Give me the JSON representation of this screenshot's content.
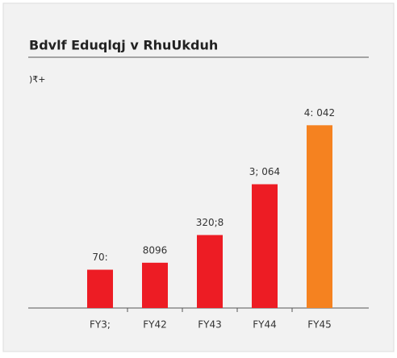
{
  "chart_data": {
    "type": "bar",
    "title": "Bdvlf Eduqlqj v RhuUkduh",
    "subtitle": ")₹+",
    "categories": [
      "FY3;",
      "FY42",
      "FY43",
      "FY44",
      "FY45"
    ],
    "values": [
      5.7,
      6.74,
      10.86,
      18.42,
      27.2
    ],
    "value_labels": [
      "70:",
      "8096",
      "320;8",
      "3; 064",
      "4: 042"
    ],
    "colors": [
      "#ed1c24",
      "#ed1c24",
      "#ed1c24",
      "#ed1c24",
      "#f58220"
    ],
    "ylim": [
      0,
      30
    ]
  }
}
